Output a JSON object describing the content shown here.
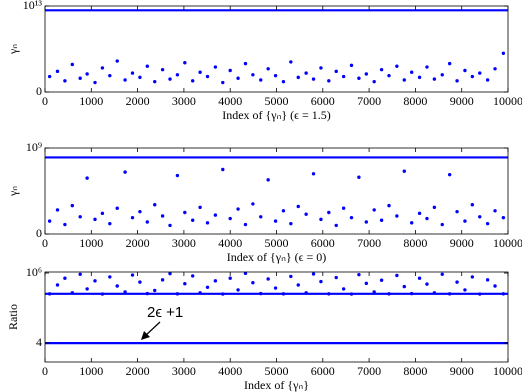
{
  "chart_data": [
    {
      "type": "scatter",
      "xlabel": "Index of {γₙ} (ϵ = 1.5)",
      "ylabel": "γₙ",
      "xlim": [
        0,
        10000
      ],
      "ylim": [
        0,
        10000000000000.0
      ],
      "xticks": [
        0,
        1000,
        2000,
        3000,
        4000,
        5000,
        6000,
        7000,
        8000,
        9000,
        10000
      ],
      "yticks": [
        0,
        {
          "value": 10000000000000.0,
          "label": "10¹³"
        }
      ],
      "yscale": "linear",
      "series": [
        {
          "color": "#0000ff",
          "style": "line",
          "x": [
            0,
            10000
          ],
          "values": [
            9500000000000.0,
            9500000000000.0
          ]
        },
        {
          "color": "#0000ff",
          "style": "marker",
          "x": [
            100,
            270,
            430,
            590,
            760,
            910,
            1080,
            1240,
            1400,
            1560,
            1730,
            1890,
            2050,
            2210,
            2370,
            2540,
            2700,
            2860,
            3020,
            3190,
            3350,
            3510,
            3680,
            3840,
            4000,
            4170,
            4330,
            4490,
            4660,
            4820,
            4980,
            5150,
            5310,
            5470,
            5640,
            5800,
            5960,
            6130,
            6290,
            6450,
            6620,
            6780,
            6940,
            7110,
            7270,
            7430,
            7600,
            7760,
            7920,
            8090,
            8250,
            8410,
            8580,
            8740,
            8900,
            9070,
            9230,
            9390,
            9560,
            9720,
            9900
          ],
          "values": [
            1800000000000.0,
            2400000000000.0,
            1300000000000.0,
            3200000000000.0,
            1600000000000.0,
            2100000000000.0,
            1100000000000.0,
            2800000000000.0,
            1900000000000.0,
            3600000000000.0,
            1400000000000.0,
            2200000000000.0,
            1700000000000.0,
            3000000000000.0,
            1200000000000.0,
            2600000000000.0,
            1500000000000.0,
            2000000000000.0,
            3400000000000.0,
            1300000000000.0,
            2300000000000.0,
            1800000000000.0,
            2900000000000.0,
            1100000000000.0,
            2500000000000.0,
            1600000000000.0,
            3300000000000.0,
            2000000000000.0,
            1400000000000.0,
            2700000000000.0,
            1900000000000.0,
            1200000000000.0,
            3500000000000.0,
            1700000000000.0,
            2200000000000.0,
            1500000000000.0,
            2800000000000.0,
            1300000000000.0,
            2400000000000.0,
            1800000000000.0,
            3100000000000.0,
            1600000000000.0,
            2100000000000.0,
            1200000000000.0,
            2600000000000.0,
            1900000000000.0,
            3000000000000.0,
            1400000000000.0,
            2300000000000.0,
            1700000000000.0,
            2900000000000.0,
            1500000000000.0,
            2000000000000.0,
            3300000000000.0,
            1300000000000.0,
            2500000000000.0,
            1800000000000.0,
            2200000000000.0,
            1400000000000.0,
            2700000000000.0,
            4500000000000.0
          ]
        }
      ]
    },
    {
      "type": "scatter",
      "xlabel": "Index of {γₙ} (ϵ = 0)",
      "ylabel": "γₙ",
      "xlim": [
        0,
        10000
      ],
      "ylim": [
        0,
        1000000000.0
      ],
      "xticks": [
        0,
        1000,
        2000,
        3000,
        4000,
        5000,
        6000,
        7000,
        8000,
        9000,
        10000
      ],
      "yticks": [
        0,
        {
          "value": 1000000000.0,
          "label": "10⁹"
        }
      ],
      "yscale": "linear",
      "series": [
        {
          "color": "#0000ff",
          "style": "line",
          "x": [
            0,
            10000
          ],
          "values": [
            890000000.0,
            890000000.0
          ]
        },
        {
          "color": "#0000ff",
          "style": "marker",
          "x": [
            100,
            270,
            430,
            590,
            760,
            910,
            1080,
            1240,
            1400,
            1560,
            1730,
            1890,
            2050,
            2210,
            2370,
            2540,
            2700,
            2860,
            3020,
            3190,
            3350,
            3510,
            3680,
            3840,
            4000,
            4170,
            4330,
            4490,
            4660,
            4820,
            4980,
            5150,
            5310,
            5470,
            5640,
            5800,
            5960,
            6130,
            6290,
            6450,
            6620,
            6780,
            6940,
            7110,
            7270,
            7430,
            7600,
            7760,
            7920,
            8090,
            8250,
            8410,
            8580,
            8740,
            8900,
            9070,
            9230,
            9390,
            9560,
            9720,
            9900
          ],
          "values": [
            150000000.0,
            280000000.0,
            110000000.0,
            330000000.0,
            200000000.0,
            650000000.0,
            170000000.0,
            240000000.0,
            120000000.0,
            300000000.0,
            720000000.0,
            190000000.0,
            260000000.0,
            140000000.0,
            340000000.0,
            210000000.0,
            100000000.0,
            680000000.0,
            250000000.0,
            160000000.0,
            310000000.0,
            130000000.0,
            220000000.0,
            750000000.0,
            180000000.0,
            290000000.0,
            110000000.0,
            350000000.0,
            200000000.0,
            630000000.0,
            150000000.0,
            270000000.0,
            120000000.0,
            320000000.0,
            230000000.0,
            700000000.0,
            170000000.0,
            250000000.0,
            100000000.0,
            300000000.0,
            190000000.0,
            660000000.0,
            140000000.0,
            280000000.0,
            160000000.0,
            330000000.0,
            210000000.0,
            730000000.0,
            130000000.0,
            240000000.0,
            180000000.0,
            310000000.0,
            110000000.0,
            690000000.0,
            260000000.0,
            150000000.0,
            340000000.0,
            200000000.0,
            120000000.0,
            270000000.0,
            190000000.0
          ]
        }
      ]
    },
    {
      "type": "scatter",
      "xlabel": "Index of {γₙ}",
      "ylabel": "Ratio",
      "annotation": "2ϵ +1",
      "xlim": [
        0,
        10000
      ],
      "ylim": [
        0.14,
        1200000.0
      ],
      "xticks": [
        0,
        1000,
        2000,
        3000,
        4000,
        5000,
        6000,
        7000,
        8000,
        9000,
        10000
      ],
      "yticks": [
        4,
        {
          "value": 1000000,
          "label": "10⁶"
        }
      ],
      "yscale": "log",
      "series": [
        {
          "color": "#0000ff",
          "style": "line",
          "x": [
            0,
            10000
          ],
          "values": [
            4,
            4
          ]
        },
        {
          "color": "#0000ff",
          "style": "line",
          "x": [
            0,
            10000
          ],
          "values": [
            25000,
            25000
          ]
        },
        {
          "color": "#0000ff",
          "style": "marker",
          "x": [
            100,
            270,
            430,
            590,
            760,
            910,
            1080,
            1240,
            1400,
            1560,
            1730,
            1890,
            2050,
            2210,
            2370,
            2540,
            2700,
            2860,
            3020,
            3190,
            3350,
            3510,
            3680,
            3840,
            4000,
            4170,
            4330,
            4490,
            4660,
            4820,
            4980,
            5150,
            5310,
            5470,
            5640,
            5800,
            5960,
            6130,
            6290,
            6450,
            6620,
            6780,
            6940,
            7110,
            7270,
            7430,
            7600,
            7760,
            7920,
            8090,
            8250,
            8410,
            8580,
            8740,
            8900,
            9070,
            9230,
            9390,
            9560,
            9720,
            9900
          ],
          "values": [
            25000,
            120000,
            400000,
            30000,
            800000,
            60000,
            250000,
            24000,
            500000,
            100000,
            35000,
            700000,
            200000,
            26000,
            45000,
            300000,
            900000,
            25000,
            150000,
            600000,
            30000,
            80000,
            250000,
            24000,
            400000,
            50000,
            950000,
            180000,
            26000,
            350000,
            70000,
            25000,
            550000,
            120000,
            30000,
            850000,
            220000,
            25000,
            450000,
            60000,
            24000,
            750000,
            160000,
            35000,
            280000,
            25000,
            650000,
            90000,
            26000,
            400000,
            140000,
            30000,
            800000,
            25000,
            200000,
            50000,
            500000,
            24000,
            300000,
            100000,
            25000
          ]
        }
      ]
    }
  ]
}
